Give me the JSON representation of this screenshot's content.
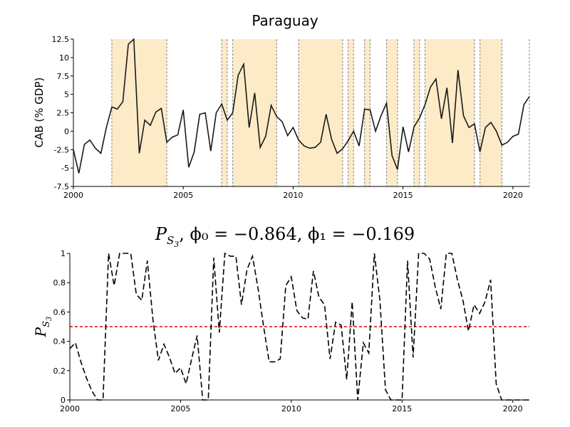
{
  "chart_data": [
    {
      "type": "line",
      "title": "Paraguay",
      "ylabel": "CAB (% GDP)",
      "xlim": [
        2000,
        2020.75
      ],
      "ylim": [
        -7.5,
        12.5
      ],
      "xticks": [
        "2000",
        "2005",
        "2010",
        "2015",
        "2020"
      ],
      "yticks": [
        "12.5",
        "10",
        "7.5",
        "5",
        "2.5",
        "0",
        "-2.5",
        "-5",
        "-7.5"
      ],
      "shaded_periods": [
        [
          2001.75,
          2004.25
        ],
        [
          2006.75,
          2007.0
        ],
        [
          2007.25,
          2009.25
        ],
        [
          2010.25,
          2012.25
        ],
        [
          2012.5,
          2012.75
        ],
        [
          2013.25,
          2013.5
        ],
        [
          2014.25,
          2014.75
        ],
        [
          2015.5,
          2015.75
        ],
        [
          2016.0,
          2018.25
        ],
        [
          2018.5,
          2019.5
        ]
      ],
      "dashed_lines_only": [
        2020.75
      ],
      "series": [
        {
          "x": [
            2000.0,
            2000.25,
            2000.5,
            2000.75,
            2001.0,
            2001.25,
            2001.5,
            2001.75,
            2002.0,
            2002.25,
            2002.5,
            2002.75,
            2003.0,
            2003.25,
            2003.5,
            2003.75,
            2004.0,
            2004.25,
            2004.5,
            2004.75,
            2005.0,
            2005.25,
            2005.5,
            2005.75,
            2006.0,
            2006.25,
            2006.5,
            2006.75,
            2007.0,
            2007.25,
            2007.5,
            2007.75,
            2008.0,
            2008.25,
            2008.5,
            2008.75,
            2009.0,
            2009.25,
            2009.5,
            2009.75,
            2010.0,
            2010.25,
            2010.5,
            2010.75,
            2011.0,
            2011.25,
            2011.5,
            2011.75,
            2012.0,
            2012.25,
            2012.5,
            2012.75,
            2013.0,
            2013.25,
            2013.5,
            2013.75,
            2014.0,
            2014.25,
            2014.5,
            2014.75,
            2015.0,
            2015.25,
            2015.5,
            2015.75,
            2016.0,
            2016.25,
            2016.5,
            2016.75,
            2017.0,
            2017.25,
            2017.5,
            2017.75,
            2018.0,
            2018.25,
            2018.5,
            2018.75,
            2019.0,
            2019.25,
            2019.5,
            2019.75,
            2020.0,
            2020.25,
            2020.5,
            2020.75
          ],
          "values": [
            -2.5,
            -5.7,
            -1.8,
            -1.2,
            -2.3,
            -3.0,
            0.5,
            3.3,
            3.0,
            4.0,
            11.8,
            12.5,
            -3.0,
            1.5,
            0.8,
            2.6,
            3.1,
            -1.5,
            -0.8,
            -0.5,
            2.9,
            -4.9,
            -2.8,
            2.3,
            2.5,
            -2.7,
            2.5,
            3.7,
            1.5,
            2.5,
            7.6,
            9.1,
            0.5,
            5.2,
            -2.2,
            -0.7,
            3.5,
            2.0,
            1.3,
            -0.6,
            0.5,
            -1.2,
            -2.0,
            -2.3,
            -2.2,
            -1.5,
            2.3,
            -1.1,
            -3.0,
            -2.4,
            -1.3,
            0.0,
            -2.0,
            3.0,
            2.9,
            0.0,
            2.1,
            3.8,
            -3.3,
            -5.2,
            0.6,
            -2.8,
            0.6,
            1.8,
            3.6,
            6.0,
            7.1,
            1.7,
            5.9,
            -1.6,
            8.3,
            2.1,
            0.5,
            1.0,
            -2.8,
            0.5,
            1.2,
            0.0,
            -1.9,
            -1.5,
            -0.7,
            -0.4,
            3.6,
            4.7
          ]
        }
      ]
    },
    {
      "type": "line",
      "title": "P_{S_3}, φ0 = −0.864, φ1 = −0.169",
      "title_parts": {
        "p": "P",
        "sub1": "S",
        "sub2": "3",
        "rest": ", ϕ₀ = −0.864, ϕ₁ = −0.169"
      },
      "ylabel_parts": {
        "p": "P",
        "sub1": "S",
        "sub2": "3"
      },
      "xlim": [
        2000,
        2020.75
      ],
      "ylim": [
        0,
        1
      ],
      "xticks": [
        "2000",
        "2005",
        "2010",
        "2015",
        "2020"
      ],
      "yticks": [
        "1",
        "0.8",
        "0.6",
        "0.4",
        "0.2",
        "0"
      ],
      "threshold": 0.5,
      "series": [
        {
          "style": "dashed",
          "x": [
            2000.0,
            2000.25,
            2000.5,
            2000.75,
            2001.0,
            2001.25,
            2001.5,
            2001.75,
            2002.0,
            2002.25,
            2002.5,
            2002.75,
            2003.0,
            2003.25,
            2003.5,
            2003.75,
            2004.0,
            2004.25,
            2004.5,
            2004.75,
            2005.0,
            2005.25,
            2005.5,
            2005.75,
            2006.0,
            2006.25,
            2006.5,
            2006.75,
            2007.0,
            2007.25,
            2007.5,
            2007.75,
            2008.0,
            2008.25,
            2008.5,
            2008.75,
            2009.0,
            2009.25,
            2009.5,
            2009.75,
            2010.0,
            2010.25,
            2010.5,
            2010.75,
            2011.0,
            2011.25,
            2011.5,
            2011.75,
            2012.0,
            2012.25,
            2012.5,
            2012.75,
            2013.0,
            2013.25,
            2013.5,
            2013.75,
            2014.0,
            2014.25,
            2014.5,
            2014.75,
            2015.0,
            2015.25,
            2015.5,
            2015.75,
            2016.0,
            2016.25,
            2016.5,
            2016.75,
            2017.0,
            2017.25,
            2017.5,
            2017.75,
            2018.0,
            2018.25,
            2018.5,
            2018.75,
            2019.0,
            2019.25,
            2019.5,
            2019.75,
            2020.0,
            2020.25,
            2020.5,
            2020.75
          ],
          "values": [
            0.35,
            0.39,
            0.26,
            0.15,
            0.06,
            0.0,
            0.0,
            1.0,
            0.78,
            1.0,
            1.0,
            1.0,
            0.72,
            0.68,
            0.95,
            0.55,
            0.27,
            0.38,
            0.29,
            0.18,
            0.22,
            0.11,
            0.28,
            0.44,
            0.0,
            0.0,
            0.97,
            0.46,
            1.0,
            0.98,
            0.98,
            0.65,
            0.89,
            0.98,
            0.76,
            0.5,
            0.26,
            0.26,
            0.28,
            0.78,
            0.84,
            0.61,
            0.56,
            0.55,
            0.88,
            0.7,
            0.65,
            0.28,
            0.53,
            0.51,
            0.14,
            0.67,
            0.0,
            0.39,
            0.32,
            1.0,
            0.68,
            0.07,
            0.0,
            0.0,
            0.0,
            0.95,
            0.29,
            1.0,
            1.0,
            0.96,
            0.77,
            0.62,
            1.0,
            1.0,
            0.82,
            0.68,
            0.47,
            0.65,
            0.59,
            0.67,
            0.82,
            0.11,
            0.0,
            0.0,
            0.0,
            0.0,
            0.0,
            0.0
          ]
        }
      ]
    }
  ]
}
